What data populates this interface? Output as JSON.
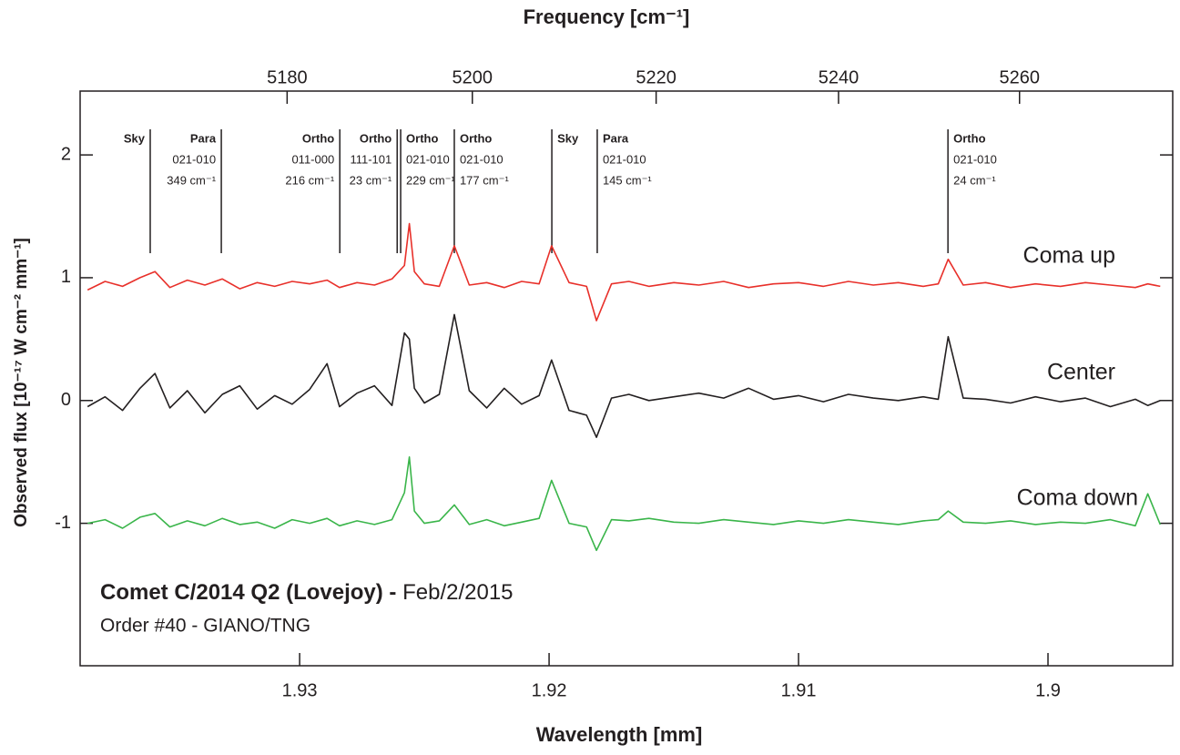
{
  "chart_data": {
    "type": "line",
    "title": "Frequency [cm⁻¹]",
    "xlabel": "Wavelength [mm]",
    "ylabel": "Observed flux [10⁻¹⁷ W cm⁻² mm⁻¹]",
    "xlim": [
      1.9388,
      1.895
    ],
    "xticks": [
      1.93,
      1.92,
      1.91,
      1.9
    ],
    "x2ticks": [
      5180,
      5200,
      5220,
      5240,
      5260
    ],
    "ylim": [
      -2.16,
      2.52
    ],
    "yticks": [
      2,
      1,
      0,
      -1
    ],
    "info": {
      "title": "Comet C/2014 Q2 (Lovejoy) -",
      "date": "Feb/2/2015",
      "subtitle": "Order #40 - GIANO/TNG"
    },
    "annotations": [
      {
        "x": 1.93599,
        "lines": [
          "Sky"
        ]
      },
      {
        "x": 1.93314,
        "lines": [
          "Para",
          "021-010",
          "349 cm⁻¹"
        ]
      },
      {
        "x": 1.92839,
        "lines": [
          "Ortho",
          "011-000",
          "216 cm⁻¹"
        ]
      },
      {
        "x": 1.92609,
        "lines": [
          "Ortho",
          "111-101",
          "23 cm⁻¹"
        ]
      },
      {
        "x": 1.92595,
        "lines": [
          "Ortho",
          "021-010",
          "229 cm⁻¹"
        ]
      },
      {
        "x": 1.9238,
        "lines": [
          "Ortho",
          "021-010",
          "177 cm⁻¹"
        ]
      },
      {
        "x": 1.91989,
        "lines": [
          "Sky"
        ]
      },
      {
        "x": 1.91807,
        "lines": [
          "Para",
          "021-010",
          "145 cm⁻¹"
        ]
      },
      {
        "x": 1.90401,
        "lines": [
          "Ortho",
          "021-010",
          "24 cm⁻¹"
        ]
      }
    ],
    "x": [
      1.9385,
      1.9378,
      1.9371,
      1.9364,
      1.9358,
      1.9352,
      1.9345,
      1.9338,
      1.9331,
      1.9324,
      1.9317,
      1.931,
      1.9303,
      1.9296,
      1.9289,
      1.9284,
      1.9277,
      1.927,
      1.9263,
      1.9258,
      1.9256,
      1.9254,
      1.925,
      1.9244,
      1.9238,
      1.9232,
      1.9225,
      1.9218,
      1.9211,
      1.9204,
      1.9199,
      1.9192,
      1.9185,
      1.9181,
      1.9175,
      1.9168,
      1.916,
      1.915,
      1.914,
      1.913,
      1.912,
      1.911,
      1.91,
      1.909,
      1.908,
      1.907,
      1.906,
      1.905,
      1.9044,
      1.904,
      1.9034,
      1.9025,
      1.9015,
      1.9005,
      1.8995,
      1.8985,
      1.8975,
      1.8965,
      1.896,
      1.8955
    ],
    "series": [
      {
        "name": "Coma up",
        "color": "#e8302a",
        "values": [
          0.9,
          0.97,
          0.93,
          1.0,
          1.05,
          0.92,
          0.98,
          0.94,
          0.99,
          0.91,
          0.96,
          0.93,
          0.97,
          0.95,
          0.98,
          0.92,
          0.96,
          0.94,
          0.99,
          1.1,
          1.44,
          1.05,
          0.95,
          0.93,
          1.26,
          0.94,
          0.96,
          0.92,
          0.97,
          0.95,
          1.26,
          0.96,
          0.93,
          0.65,
          0.95,
          0.97,
          0.93,
          0.96,
          0.94,
          0.97,
          0.92,
          0.95,
          0.96,
          0.93,
          0.97,
          0.94,
          0.96,
          0.93,
          0.95,
          1.15,
          0.94,
          0.96,
          0.92,
          0.95,
          0.93,
          0.96,
          0.94,
          0.92,
          0.95,
          0.93
        ]
      },
      {
        "name": "Center",
        "color": "#231f20",
        "values": [
          -0.05,
          0.03,
          -0.08,
          0.1,
          0.22,
          -0.06,
          0.08,
          -0.1,
          0.05,
          0.12,
          -0.07,
          0.04,
          -0.03,
          0.09,
          0.3,
          -0.05,
          0.06,
          0.12,
          -0.04,
          0.55,
          0.5,
          0.1,
          -0.02,
          0.05,
          0.7,
          0.08,
          -0.06,
          0.1,
          -0.03,
          0.04,
          0.33,
          -0.08,
          -0.12,
          -0.3,
          0.02,
          0.05,
          0.0,
          0.03,
          0.06,
          0.02,
          0.1,
          0.01,
          0.04,
          -0.01,
          0.05,
          0.02,
          0.0,
          0.03,
          0.01,
          0.52,
          0.02,
          0.01,
          -0.02,
          0.03,
          -0.01,
          0.02,
          -0.05,
          0.01,
          -0.04,
          0.0
        ]
      },
      {
        "name": "Coma down",
        "color": "#3ab54a",
        "values": [
          -1.0,
          -0.97,
          -1.04,
          -0.95,
          -0.92,
          -1.03,
          -0.98,
          -1.02,
          -0.96,
          -1.01,
          -0.99,
          -1.04,
          -0.97,
          -1.0,
          -0.96,
          -1.02,
          -0.98,
          -1.01,
          -0.97,
          -0.75,
          -0.46,
          -0.9,
          -1.0,
          -0.98,
          -0.85,
          -1.01,
          -0.97,
          -1.02,
          -0.99,
          -0.96,
          -0.65,
          -1.0,
          -1.03,
          -1.22,
          -0.97,
          -0.98,
          -0.96,
          -0.99,
          -1.0,
          -0.97,
          -0.99,
          -1.01,
          -0.98,
          -1.0,
          -0.97,
          -0.99,
          -1.01,
          -0.98,
          -0.97,
          -0.9,
          -0.99,
          -1.0,
          -0.98,
          -1.01,
          -0.99,
          -1.0,
          -0.97,
          -1.02,
          -0.76,
          -1.01
        ]
      }
    ]
  }
}
